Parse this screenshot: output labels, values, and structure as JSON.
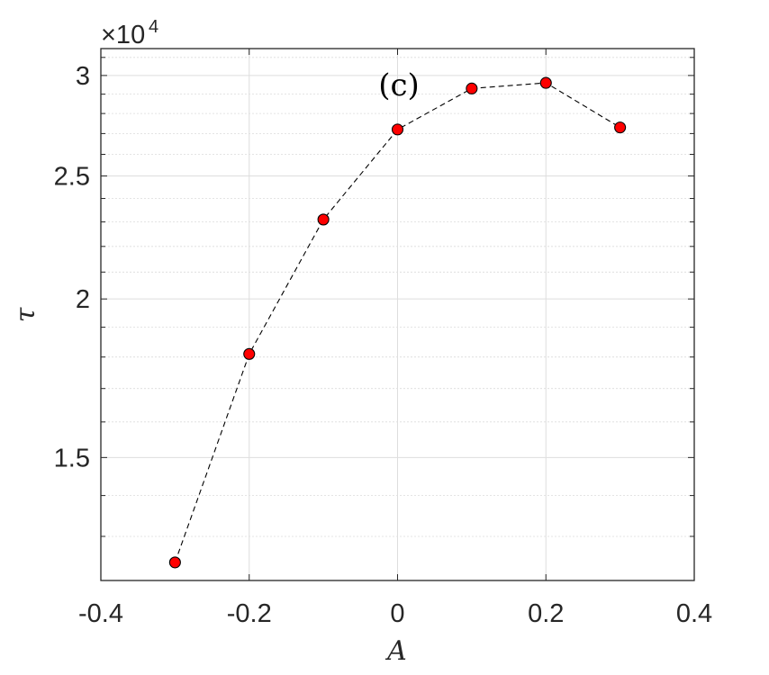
{
  "chart_data": {
    "type": "scatter",
    "panel_label": "(c)",
    "xlabel": "A",
    "ylabel": "τ",
    "exponent": {
      "prefix": "×10",
      "power": "4"
    },
    "xlim": [
      -0.4,
      0.4
    ],
    "ylim": [
      1.2,
      3.15
    ],
    "y_scale": "log",
    "y_multiplier": 10000,
    "grid": true,
    "minor_grid": true,
    "x_ticks": [
      -0.4,
      -0.2,
      0,
      0.2,
      0.4
    ],
    "x_tick_labels": [
      "-0.4",
      "-0.2",
      "0",
      "0.2",
      "0.4"
    ],
    "y_ticks": [
      1.5,
      2,
      2.5,
      3
    ],
    "y_tick_labels": [
      "1.5",
      "2",
      "2.5",
      "3"
    ],
    "series": [
      {
        "line_style": "dashed",
        "marker": "circle",
        "x": [
          -0.3,
          -0.2,
          -0.1,
          0,
          0.1,
          0.2,
          0.3
        ],
        "y": [
          1.24,
          1.81,
          2.31,
          2.72,
          2.93,
          2.96,
          2.73
        ]
      }
    ],
    "colors": {
      "marker_fill": "#ff0000",
      "marker_edge": "#000000",
      "line": "#000000"
    }
  }
}
